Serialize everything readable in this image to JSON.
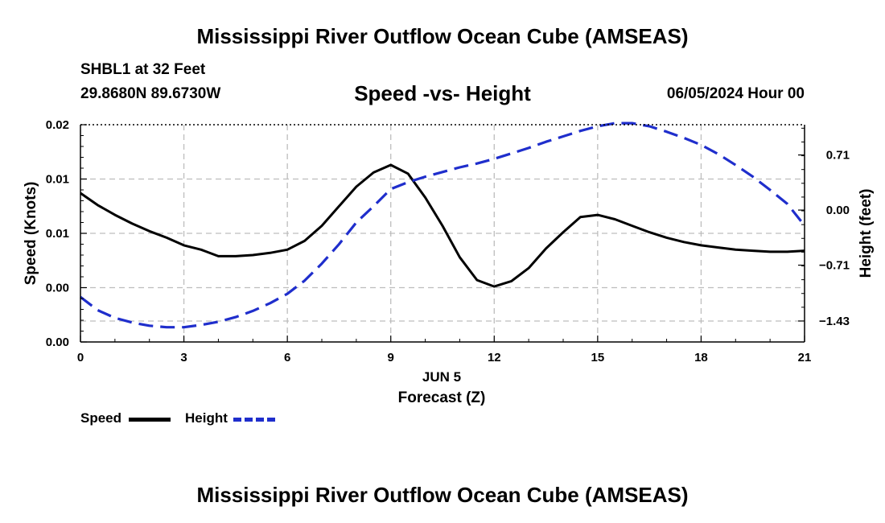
{
  "header": {
    "main_title": "Mississippi River Outflow Ocean Cube (AMSEAS)",
    "station": "SHBL1 at 32 Feet",
    "coords": "29.8680N  89.6730W",
    "subtitle": "Speed -vs- Height",
    "date": "06/05/2024 Hour 00",
    "bottom_title": "Mississippi River Outflow Ocean Cube (AMSEAS)"
  },
  "legend": {
    "speed_label": "Speed",
    "height_label": "Height"
  },
  "colors": {
    "speed": "#000000",
    "height": "#1f2ecc",
    "grid": "#bdbdbd"
  },
  "chart_data": {
    "type": "line",
    "title": "Speed -vs- Height",
    "xlabel": "Forecast (Z)",
    "xlabel_date": "JUN 5",
    "ylabel": "Speed (Knots)",
    "y2label": "Height (feet)",
    "xlim": [
      0,
      21
    ],
    "ylim": [
      0,
      0.02
    ],
    "y2lim": [
      -1.7,
      1.1
    ],
    "grid": true,
    "x_ticks": [
      {
        "v": 0,
        "label": "0"
      },
      {
        "v": 3,
        "label": "3"
      },
      {
        "v": 6,
        "label": "6"
      },
      {
        "v": 9,
        "label": "9"
      },
      {
        "v": 12,
        "label": "12"
      },
      {
        "v": 15,
        "label": "15"
      },
      {
        "v": 18,
        "label": "18"
      },
      {
        "v": 21,
        "label": "21"
      }
    ],
    "y_ticks": [
      {
        "v": 0,
        "label": "0.00"
      },
      {
        "v": 0.005,
        "label": "0.00"
      },
      {
        "v": 0.01,
        "label": "0.01"
      },
      {
        "v": 0.015,
        "label": "0.01"
      },
      {
        "v": 0.02,
        "label": "0.02"
      }
    ],
    "y2_ticks": [
      {
        "v": 0.71,
        "label": "0.71"
      },
      {
        "v": 0.0,
        "label": "0.00"
      },
      {
        "v": -0.71,
        "label": "−0.71"
      },
      {
        "v": -1.43,
        "label": "−1.43"
      }
    ],
    "series": [
      {
        "name": "Speed",
        "axis": "left",
        "style": "solid",
        "x": [
          0,
          0.5,
          1,
          1.5,
          2,
          2.5,
          3,
          3.5,
          4,
          4.5,
          5,
          5.5,
          6,
          6.5,
          7,
          7.5,
          8,
          8.5,
          9,
          9.5,
          10,
          10.5,
          11,
          11.5,
          12,
          12.5,
          13,
          13.5,
          14,
          14.5,
          15,
          15.5,
          16,
          16.5,
          17,
          17.5,
          18,
          18.5,
          19,
          19.5,
          20,
          20.5,
          21
        ],
        "values": [
          0.0137,
          0.0126,
          0.0117,
          0.0109,
          0.0102,
          0.0096,
          0.0089,
          0.0085,
          0.0079,
          0.0079,
          0.008,
          0.0082,
          0.0085,
          0.0093,
          0.0107,
          0.0125,
          0.0143,
          0.0156,
          0.0163,
          0.0155,
          0.0133,
          0.0107,
          0.0078,
          0.0057,
          0.0051,
          0.0056,
          0.0068,
          0.0086,
          0.0101,
          0.0115,
          0.0117,
          0.0113,
          0.0107,
          0.0101,
          0.0096,
          0.0092,
          0.0089,
          0.0087,
          0.0085,
          0.0084,
          0.0083,
          0.0083,
          0.0084
        ]
      },
      {
        "name": "Height",
        "axis": "right",
        "style": "dashed",
        "x": [
          0,
          0.5,
          1,
          1.5,
          2,
          2.5,
          3,
          3.5,
          4,
          4.5,
          5,
          5.5,
          6,
          6.5,
          7,
          7.5,
          8,
          8.5,
          9,
          9.5,
          10,
          10.5,
          11,
          11.5,
          12,
          12.5,
          13,
          13.5,
          14,
          14.5,
          15,
          15.5,
          16,
          16.5,
          17,
          17.5,
          18,
          18.5,
          19,
          19.5,
          20,
          20.5,
          21
        ],
        "values": [
          -1.12,
          -1.29,
          -1.39,
          -1.45,
          -1.49,
          -1.51,
          -1.51,
          -1.48,
          -1.44,
          -1.38,
          -1.3,
          -1.2,
          -1.08,
          -0.91,
          -0.69,
          -0.44,
          -0.16,
          0.05,
          0.27,
          0.36,
          0.43,
          0.49,
          0.55,
          0.6,
          0.66,
          0.73,
          0.8,
          0.88,
          0.95,
          1.02,
          1.08,
          1.12,
          1.12,
          1.08,
          1.01,
          0.93,
          0.84,
          0.72,
          0.58,
          0.43,
          0.26,
          0.08,
          -0.2
        ]
      }
    ]
  }
}
